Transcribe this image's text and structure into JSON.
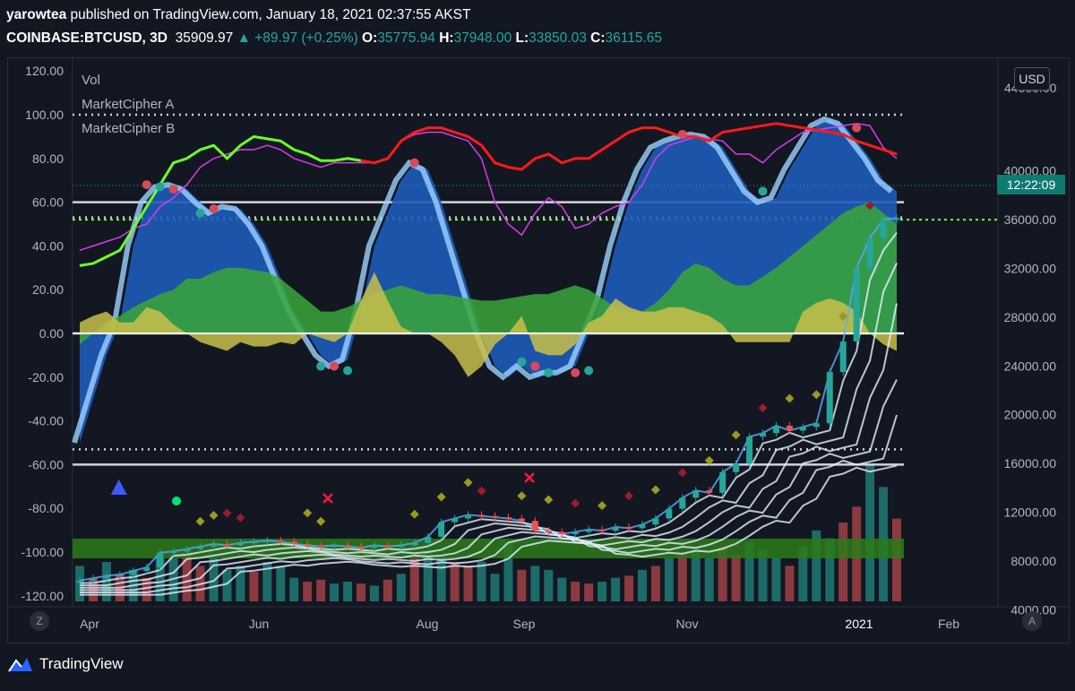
{
  "header": {
    "publisher": "yarowtea",
    "published_text": "published on TradingView.com, January 18, 2021 02:37:55 AKST",
    "symbol": "COINBASE:BTCUSD, 3D",
    "price": "35909.97",
    "change": "▲ +89.97 (+0.25%)",
    "open_label": "O:",
    "open": "35775.94",
    "high_label": "H:",
    "high": "37948.00",
    "low_label": "L:",
    "low": "33850.03",
    "close_label": "C:",
    "close": "36115.65"
  },
  "indicators": {
    "vol": "Vol",
    "mca": "MarketCipher A",
    "mcb": "MarketCipher B"
  },
  "price_scale": {
    "currency_button": "USD",
    "countdown": "12:22:09"
  },
  "corner_buttons": {
    "zoom": "Z",
    "auto": "A"
  },
  "footer": {
    "brand": "TradingView"
  },
  "colors": {
    "background": "#131722",
    "blue_wave": "#1e5bb8",
    "green_flow": "#3aa63a",
    "yellow_flow": "#c9c04a",
    "candle_up": "#26a69a",
    "candle_down": "#ef5350",
    "rsi_line": "#d63de8",
    "mf_line_green": "#6bff2a",
    "mf_line_red": "#ff1a1a"
  },
  "chart_data": {
    "type": "line",
    "left_axis": {
      "ticks": [
        "120.00",
        "100.00",
        "80.00",
        "60.00",
        "40.00",
        "20.00",
        "0.00",
        "-20.00",
        "-40.00",
        "-60.00",
        "-80.00",
        "-100.00",
        "-120.00"
      ],
      "range": [
        -125,
        125
      ]
    },
    "right_axis": {
      "ticks": [
        "40000.00",
        "36000.00",
        "32000.00",
        "28000.00",
        "24000.00",
        "20000.00",
        "16000.00",
        "12000.00",
        "8000.00",
        "4000.00"
      ],
      "top_clipped_tick": "44000.00",
      "range": [
        2500,
        44000
      ]
    },
    "x_axis": {
      "ticks": [
        "Apr",
        "Jun",
        "Aug",
        "Sep",
        "Nov",
        "2021",
        "Feb"
      ]
    },
    "reference_levels": {
      "dotted_white": [
        100,
        53,
        -53
      ],
      "solid_white": [
        60,
        0,
        -60
      ],
      "dotted_green": 52
    },
    "series": [
      {
        "name": "BTCUSD close",
        "values": [
          6400,
          6600,
          6800,
          6900,
          7200,
          7500,
          8700,
          8800,
          9000,
          9200,
          9400,
          9300,
          9500,
          9600,
          9700,
          9600,
          9400,
          9300,
          9200,
          9300,
          9200,
          9100,
          9300,
          9200,
          9300,
          9500,
          10000,
          11200,
          11500,
          11800,
          11700,
          11600,
          11500,
          11300,
          10500,
          10400,
          10200,
          10400,
          10600,
          10500,
          10800,
          10700,
          11000,
          11500,
          12300,
          13200,
          13800,
          13600,
          15300,
          16000,
          18200,
          18500,
          19100,
          18700,
          19000,
          19300,
          23500,
          26000,
          32000,
          34500,
          36000,
          36115
        ]
      },
      {
        "name": "MarketCipher blue wave",
        "values": [
          -50,
          -30,
          -10,
          5,
          40,
          60,
          67,
          68,
          66,
          60,
          55,
          58,
          57,
          50,
          40,
          25,
          10,
          0,
          -10,
          -15,
          -12,
          10,
          40,
          55,
          70,
          78,
          75,
          60,
          40,
          20,
          0,
          -15,
          -20,
          -15,
          -20,
          -18,
          -18,
          -15,
          0,
          15,
          40,
          60,
          75,
          85,
          88,
          90,
          91,
          90,
          85,
          75,
          65,
          60,
          62,
          75,
          85,
          95,
          98,
          96,
          88,
          80,
          70,
          65
        ]
      },
      {
        "name": "MarketCipher green flow",
        "values": [
          -5,
          0,
          5,
          8,
          12,
          15,
          18,
          20,
          25,
          25,
          28,
          30,
          30,
          29,
          28,
          25,
          20,
          15,
          10,
          10,
          12,
          15,
          18,
          20,
          22,
          20,
          18,
          18,
          17,
          16,
          15,
          15,
          16,
          17,
          18,
          18,
          20,
          22,
          20,
          16,
          12,
          10,
          10,
          14,
          20,
          28,
          32,
          30,
          25,
          22,
          22,
          26,
          30,
          35,
          40,
          45,
          50,
          55,
          58,
          60,
          55,
          50
        ]
      },
      {
        "name": "MarketCipher yellow flow",
        "values": [
          5,
          8,
          10,
          5,
          5,
          12,
          10,
          4,
          0,
          -4,
          -6,
          -8,
          -4,
          -6,
          -6,
          -4,
          -5,
          0,
          -2,
          -4,
          0,
          15,
          28,
          15,
          3,
          0,
          0,
          -4,
          -10,
          -20,
          -15,
          -5,
          0,
          8,
          -8,
          -10,
          -10,
          -5,
          5,
          8,
          16,
          12,
          10,
          10,
          12,
          12,
          10,
          8,
          4,
          -4,
          -4,
          -4,
          -4,
          -4,
          10,
          14,
          16,
          14,
          10,
          0,
          -5,
          -8
        ]
      },
      {
        "name": "RSI",
        "values": [
          38,
          40,
          42,
          44,
          48,
          50,
          58,
          62,
          68,
          76,
          80,
          82,
          84,
          84,
          86,
          84,
          80,
          78,
          76,
          78,
          78,
          78,
          78,
          80,
          88,
          91,
          92,
          92,
          90,
          88,
          80,
          60,
          50,
          45,
          55,
          62,
          58,
          48,
          50,
          55,
          58,
          60,
          68,
          80,
          86,
          88,
          90,
          89,
          88,
          82,
          82,
          78,
          84,
          88,
          92,
          93,
          94,
          95,
          96,
          95,
          85,
          80
        ]
      },
      {
        "name": "Money flow (green to red)",
        "values": [
          31,
          32,
          35,
          38,
          48,
          58,
          68,
          78,
          80,
          84,
          86,
          80,
          86,
          90,
          89,
          88,
          84,
          82,
          79,
          79,
          80,
          79,
          78,
          80,
          88,
          92,
          94,
          94,
          92,
          90,
          86,
          78,
          76,
          75,
          80,
          82,
          78,
          80,
          80,
          84,
          88,
          92,
          94,
          94,
          92,
          90,
          90,
          88,
          92,
          93,
          94,
          95,
          96,
          95,
          94,
          93,
          92,
          91,
          88,
          86,
          84,
          82
        ]
      },
      {
        "name": "Volume",
        "values": [
          18,
          12,
          20,
          14,
          16,
          12,
          24,
          22,
          26,
          18,
          22,
          16,
          18,
          15,
          20,
          18,
          12,
          10,
          11,
          9,
          10,
          9,
          8,
          11,
          14,
          22,
          26,
          23,
          20,
          18,
          20,
          14,
          30,
          16,
          18,
          16,
          12,
          10,
          9,
          10,
          12,
          13,
          16,
          18,
          22,
          24,
          27,
          22,
          28,
          24,
          30,
          26,
          22,
          18,
          28,
          36,
          32,
          40,
          48,
          70,
          58,
          42
        ]
      }
    ],
    "markers": {
      "diamonds": "yellow/red diamonds above candles",
      "buy_circles": "green dots at wave troughs",
      "sell_circles": "red dots at wave peaks",
      "triangle": "blue up-triangle",
      "crosses": "red x markers"
    }
  }
}
